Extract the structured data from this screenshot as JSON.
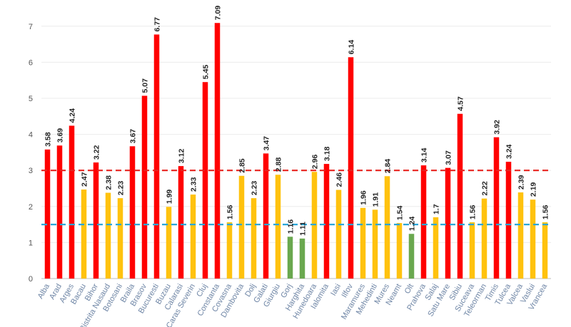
{
  "chart_data": {
    "type": "bar",
    "title": "",
    "xlabel": "",
    "ylabel": "",
    "ylim": [
      0,
      7.5
    ],
    "yticks": [
      "0",
      "1",
      "2",
      "3",
      "4",
      "5",
      "6",
      "7"
    ],
    "grid": true,
    "categories": [
      "Alba",
      "Arad",
      "Arges",
      "Bacau",
      "Bihor",
      "Bistrita Nasaud",
      "Botosani",
      "Braila",
      "Brasov",
      "Bucuresti",
      "Buzau",
      "Calarasi",
      "Caras Severin",
      "Cluj",
      "Constanta",
      "Covasna",
      "Dambovita",
      "Dolj",
      "Galati",
      "Giurgiu",
      "Gorj",
      "Harghita",
      "Hunedoara",
      "Ialomita",
      "Iasi",
      "Ilfov",
      "Maramures",
      "Mehedinti",
      "Mures",
      "Neamt",
      "Olt",
      "Prahova",
      "Salaj",
      "Satu Mare",
      "Sibiu",
      "Suceava",
      "Teleorman",
      "Timis",
      "Tulcea",
      "Valcea",
      "Vaslui",
      "Vrancea"
    ],
    "values": [
      3.58,
      3.69,
      4.24,
      2.47,
      3.22,
      2.38,
      2.23,
      3.67,
      5.07,
      6.77,
      1.99,
      3.12,
      2.33,
      5.45,
      7.09,
      1.56,
      2.85,
      2.23,
      3.47,
      2.88,
      1.16,
      1.11,
      2.96,
      3.18,
      2.46,
      6.14,
      1.96,
      1.91,
      2.84,
      1.54,
      1.24,
      3.14,
      1.7,
      3.07,
      4.57,
      1.56,
      2.22,
      3.92,
      3.24,
      2.39,
      2.19,
      1.56
    ],
    "value_labels": [
      "3.58",
      "3.69",
      "4.24",
      "2.47",
      "3.22",
      "2.38",
      "2.23",
      "3.67",
      "5.07",
      "6.77",
      "1.99",
      "3.12",
      "2.33",
      "5.45",
      "7.09",
      "1.56",
      "2.85",
      "2.23",
      "3.47",
      "2.88",
      "1.16",
      "1.11",
      "2.96",
      "3.18",
      "2.46",
      "6.14",
      "1.96",
      "1.91",
      "2.84",
      "1.54",
      "1.24",
      "3.14",
      "1.7",
      "3.07",
      "4.57",
      "1.56",
      "2.22",
      "3.92",
      "3.24",
      "2.39",
      "2.19",
      "1.56"
    ],
    "thresholds": [
      {
        "name": "red-threshold",
        "value": 3.0,
        "color": "#e8231f",
        "style": "dashed"
      },
      {
        "name": "blue-threshold",
        "value": 1.5,
        "color": "#2aa6d8",
        "style": "dashed"
      }
    ],
    "colors": {
      "high": "#ff0000",
      "mid": "#ffc20e",
      "low": "#6aa84f"
    }
  }
}
